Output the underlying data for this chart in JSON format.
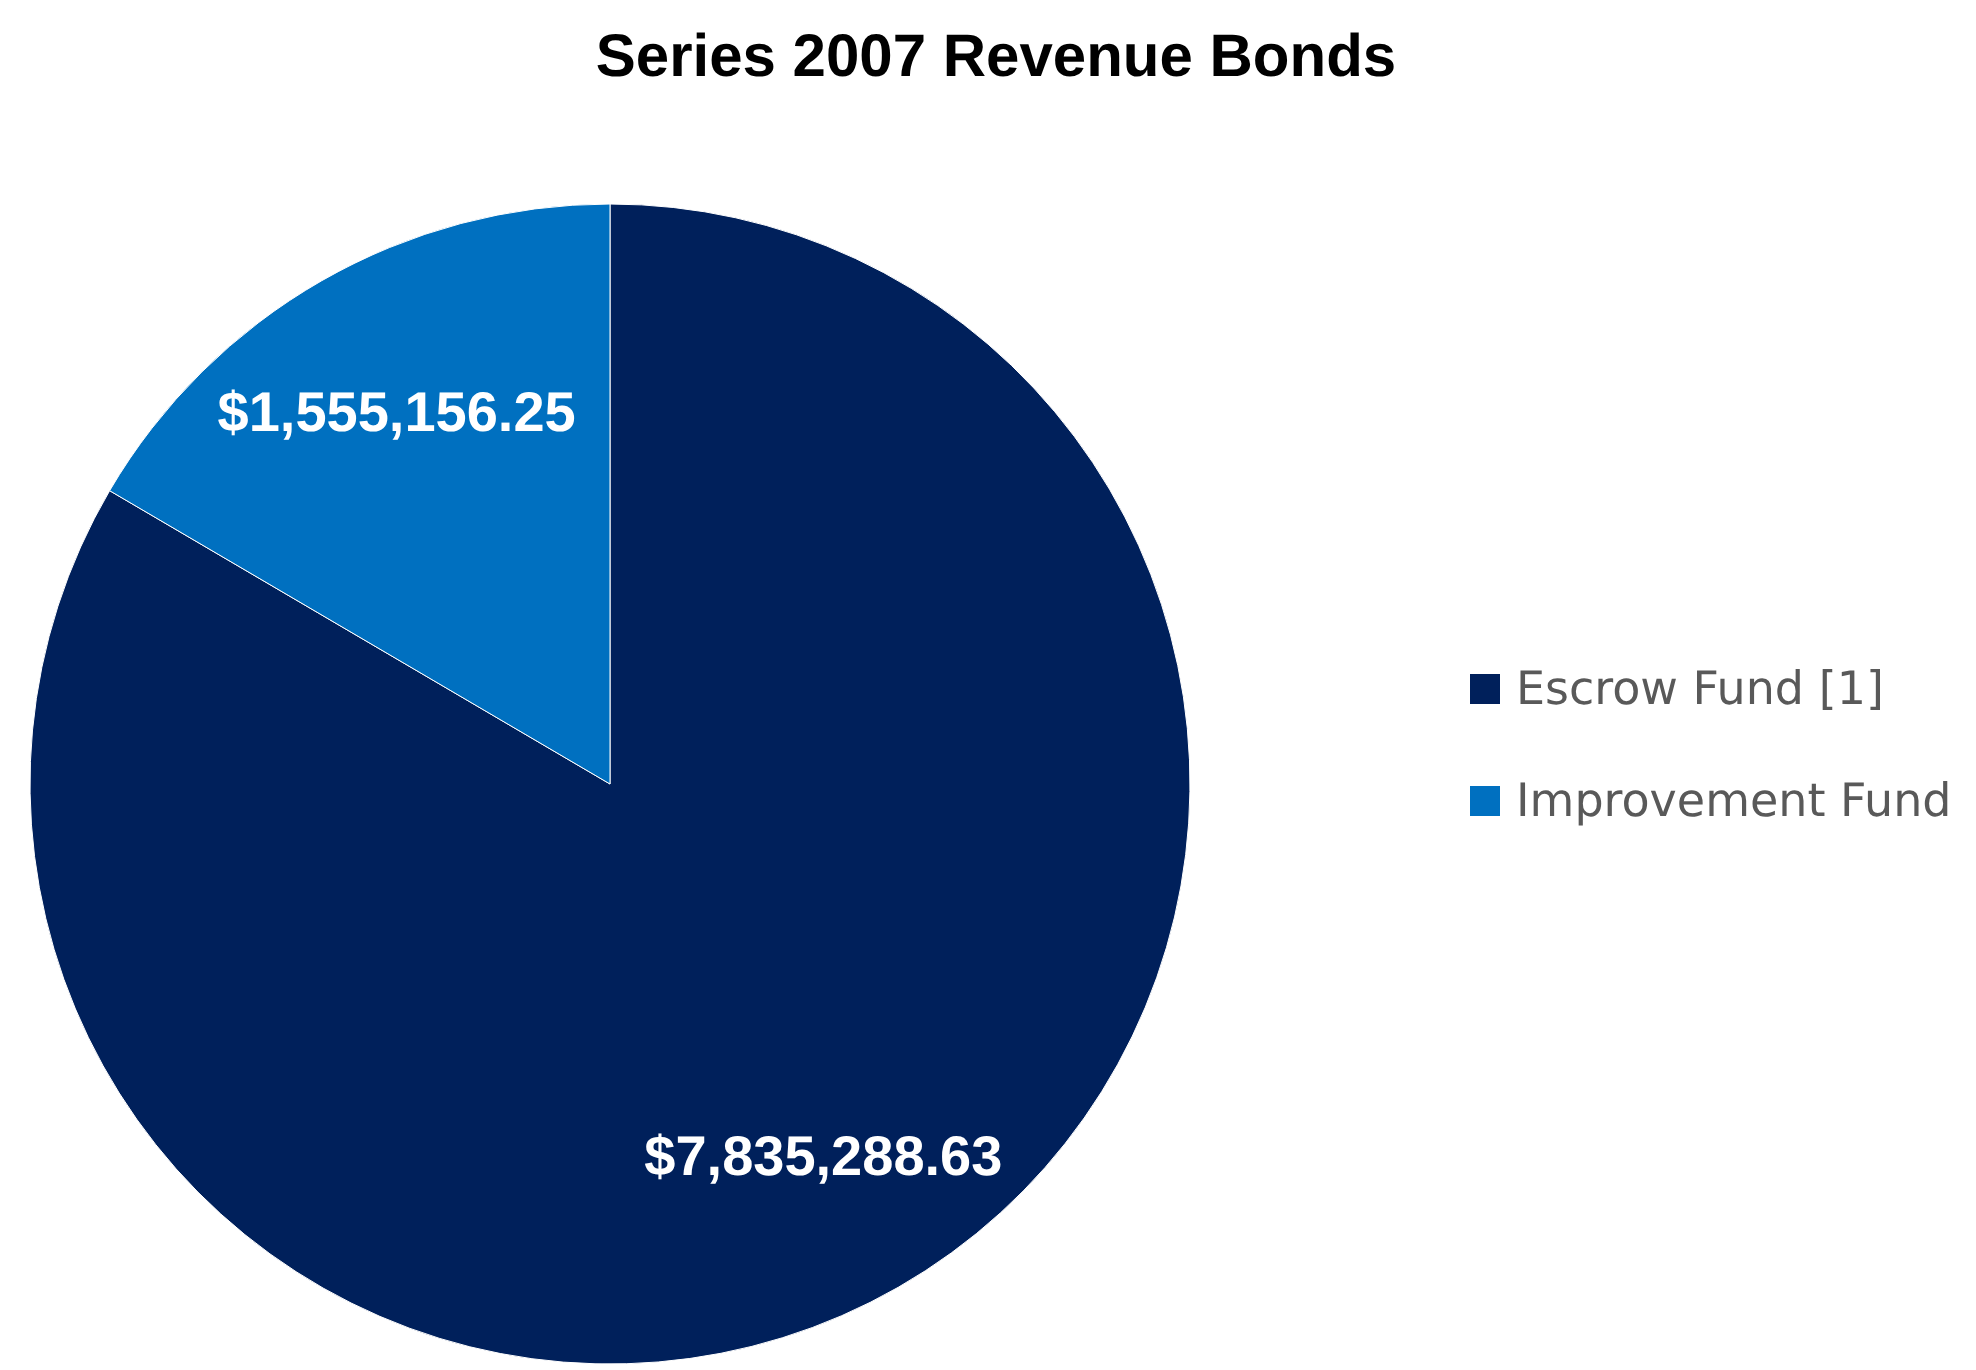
{
  "chart_data": {
    "type": "pie",
    "title": "Series 2007 Revenue Bonds",
    "categories": [
      "Escrow Fund [1]",
      "Improvement Fund"
    ],
    "values": [
      7835288.63,
      1555156.25
    ],
    "value_labels": [
      "$7,835,288.63",
      "$1,555,156.25"
    ],
    "colors": [
      "#00205b",
      "#0070c0"
    ],
    "legend": "right"
  }
}
